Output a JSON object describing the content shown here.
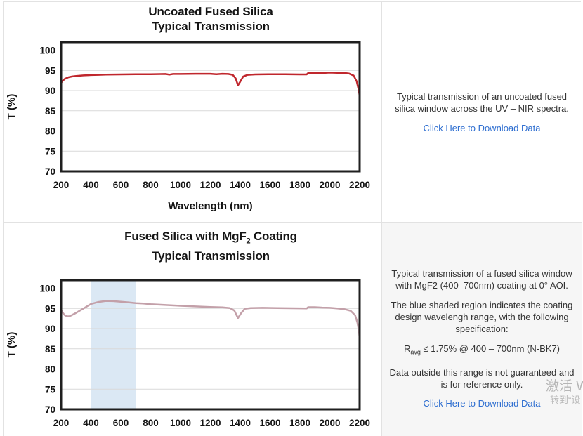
{
  "panels": {
    "top_right": {
      "description": "Typical transmission of an uncoated fused silica window across the UV – NIR spectra.",
      "link": "Click Here to Download Data"
    },
    "bottom_right": {
      "p1": "Typical transmission of a fused silica window with MgF2 (400–700nm) coating at 0° AOI.",
      "p2": "The blue shaded region indicates the coating design wavelengh range, with the following specification:",
      "spec_r": "R",
      "spec_sub": "avg",
      "spec_rest": " ≤ 1.75% @ 400 – 700nm (N-BK7)",
      "p3": "Data outside this range is not guaranteed and is for reference only.",
      "link": "Click Here to Download Data"
    }
  },
  "watermark": {
    "line1": "激活 W",
    "line2": "转到“设"
  },
  "chart_data": [
    {
      "type": "line",
      "title": "Uncoated Fused Silica",
      "subtitle": "Typical Transmission",
      "title_lines": [
        [
          {
            "t": "Uncoated Fused Silica"
          }
        ],
        [
          {
            "t": "Typical Transmission"
          }
        ]
      ],
      "xlabel": "Wavelength (nm)",
      "ylabel": "T (%)",
      "xlim": [
        200,
        2200
      ],
      "ylim": [
        70,
        100
      ],
      "xticks": [
        200,
        400,
        600,
        800,
        1000,
        1200,
        1400,
        1600,
        1800,
        2000,
        2200
      ],
      "yticks": [
        100,
        95,
        90,
        85,
        80,
        75,
        70
      ],
      "gridlines": [
        95,
        90,
        85,
        80,
        75
      ],
      "grid": true,
      "legend": "none",
      "line_color": "#c0272d",
      "band": null,
      "series": [
        {
          "name": "Uncoated fused silica transmission (%)",
          "points": [
            [
              200,
              91.9
            ],
            [
              210,
              92.4
            ],
            [
              225,
              92.9
            ],
            [
              250,
              93.3
            ],
            [
              275,
              93.5
            ],
            [
              300,
              93.6
            ],
            [
              350,
              93.75
            ],
            [
              400,
              93.85
            ],
            [
              450,
              93.9
            ],
            [
              500,
              93.95
            ],
            [
              600,
              94.0
            ],
            [
              700,
              94.05
            ],
            [
              800,
              94.05
            ],
            [
              900,
              94.1
            ],
            [
              925,
              93.95
            ],
            [
              950,
              94.1
            ],
            [
              1000,
              94.1
            ],
            [
              1100,
              94.15
            ],
            [
              1200,
              94.15
            ],
            [
              1240,
              94.05
            ],
            [
              1280,
              94.15
            ],
            [
              1320,
              94.1
            ],
            [
              1350,
              93.9
            ],
            [
              1370,
              93.0
            ],
            [
              1385,
              91.3
            ],
            [
              1400,
              92.2
            ],
            [
              1420,
              93.5
            ],
            [
              1450,
              93.9
            ],
            [
              1500,
              94.0
            ],
            [
              1600,
              94.05
            ],
            [
              1700,
              94.05
            ],
            [
              1800,
              94.0
            ],
            [
              1845,
              94.0
            ],
            [
              1855,
              94.35
            ],
            [
              1900,
              94.4
            ],
            [
              1950,
              94.35
            ],
            [
              2000,
              94.45
            ],
            [
              2050,
              94.4
            ],
            [
              2100,
              94.35
            ],
            [
              2130,
              94.2
            ],
            [
              2160,
              93.7
            ],
            [
              2180,
              92.3
            ],
            [
              2195,
              90.0
            ],
            [
              2200,
              88.6
            ]
          ]
        }
      ]
    },
    {
      "type": "line",
      "title": "Fused Silica with MgF2 Coating",
      "subtitle": "Typical Transmission",
      "title_lines": [
        [
          {
            "t": "Fused Silica with MgF"
          },
          {
            "t": "2",
            "sub": true
          },
          {
            "t": " Coating"
          }
        ],
        [
          {
            "t": "Typical Transmission"
          }
        ]
      ],
      "xlabel": "",
      "ylabel": "T (%)",
      "xlim": [
        200,
        2200
      ],
      "ylim": [
        70,
        100
      ],
      "xticks": [
        200,
        400,
        600,
        800,
        1000,
        1200,
        1400,
        1600,
        1800,
        2000,
        2200
      ],
      "yticks": [
        100,
        95,
        90,
        85,
        80,
        75,
        70
      ],
      "gridlines": [
        95,
        90,
        85,
        80,
        75
      ],
      "grid": true,
      "legend": "none",
      "line_color": "#c3a0a9",
      "band": {
        "from": 400,
        "to": 700,
        "color": "#dbe8f4"
      },
      "series": [
        {
          "name": "MgF2-coated fused silica transmission (%)",
          "points": [
            [
              200,
              94.7
            ],
            [
              210,
              94.0
            ],
            [
              225,
              93.3
            ],
            [
              240,
              93.05
            ],
            [
              255,
              93.05
            ],
            [
              270,
              93.3
            ],
            [
              300,
              93.9
            ],
            [
              350,
              95.0
            ],
            [
              400,
              96.1
            ],
            [
              450,
              96.6
            ],
            [
              500,
              96.85
            ],
            [
              550,
              96.8
            ],
            [
              600,
              96.65
            ],
            [
              650,
              96.5
            ],
            [
              700,
              96.3
            ],
            [
              750,
              96.2
            ],
            [
              800,
              96.05
            ],
            [
              900,
              95.85
            ],
            [
              1000,
              95.65
            ],
            [
              1100,
              95.5
            ],
            [
              1200,
              95.35
            ],
            [
              1280,
              95.25
            ],
            [
              1330,
              95.1
            ],
            [
              1360,
              94.5
            ],
            [
              1385,
              92.6
            ],
            [
              1405,
              93.8
            ],
            [
              1430,
              94.9
            ],
            [
              1470,
              95.1
            ],
            [
              1550,
              95.15
            ],
            [
              1650,
              95.1
            ],
            [
              1750,
              95.05
            ],
            [
              1845,
              95.0
            ],
            [
              1855,
              95.3
            ],
            [
              1900,
              95.3
            ],
            [
              1950,
              95.2
            ],
            [
              2000,
              95.15
            ],
            [
              2050,
              95.0
            ],
            [
              2100,
              94.8
            ],
            [
              2140,
              94.4
            ],
            [
              2170,
              93.3
            ],
            [
              2185,
              91.5
            ],
            [
              2195,
              89.5
            ],
            [
              2200,
              87.6
            ]
          ]
        }
      ]
    }
  ]
}
